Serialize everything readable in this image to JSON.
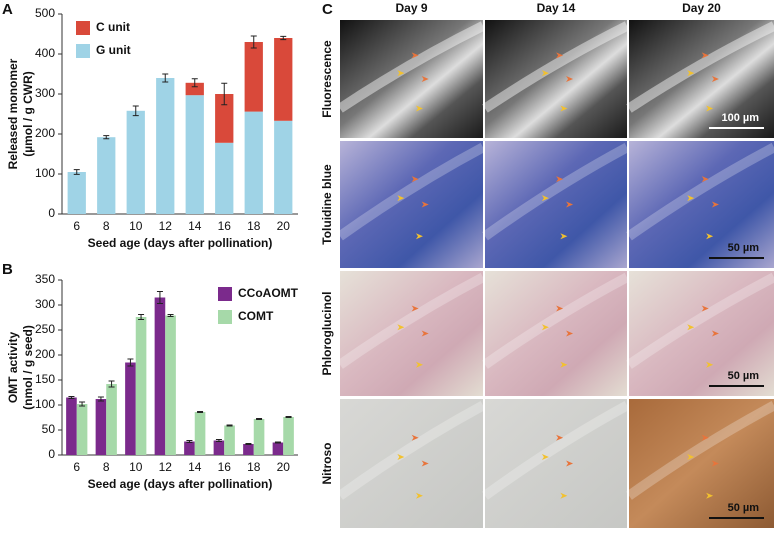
{
  "chart_data": [
    {
      "type": "bar",
      "label": "A",
      "barmode": "stack",
      "categories": [
        "6",
        "8",
        "10",
        "12",
        "14",
        "16",
        "18",
        "20"
      ],
      "series": [
        {
          "name": "G unit",
          "color": "#9fd3e6",
          "values": [
            105,
            192,
            258,
            340,
            297,
            178,
            256,
            233
          ],
          "errors": [
            6,
            4,
            12,
            10,
            null,
            null,
            null,
            null
          ]
        },
        {
          "name": "C unit",
          "color": "#d9493a",
          "values": [
            null,
            null,
            null,
            null,
            31,
            122,
            174,
            207
          ],
          "errors": [
            null,
            null,
            null,
            null,
            10,
            27,
            15,
            4
          ]
        }
      ],
      "legend_order": [
        1,
        0
      ],
      "legend": "upper left",
      "ylabel": [
        "Released monomer",
        "(µmol / g CWR)"
      ],
      "xlabel": "Seed age (days after pollination)",
      "ylim": [
        0,
        500
      ],
      "yticks": [
        0,
        100,
        200,
        300,
        400,
        500
      ]
    },
    {
      "type": "bar",
      "label": "B",
      "barmode": "group",
      "categories": [
        "6",
        "8",
        "10",
        "12",
        "14",
        "16",
        "18",
        "20"
      ],
      "series": [
        {
          "name": "CCoAOMT",
          "color": "#7b2a8c",
          "values": [
            115,
            112,
            185,
            315,
            27,
            29,
            22,
            25
          ],
          "errors": [
            2,
            4,
            7,
            12,
            2,
            2,
            1,
            1
          ]
        },
        {
          "name": "COMT",
          "color": "#a6d9a9",
          "values": [
            102,
            142,
            276,
            279,
            86,
            59,
            72,
            76
          ],
          "errors": [
            4,
            6,
            5,
            2,
            1,
            1,
            1,
            1
          ]
        }
      ],
      "legend_order": [
        0,
        1
      ],
      "legend": "upper right",
      "ylabel": [
        "OMT activity",
        "(nmol / g seed)"
      ],
      "xlabel": "Seed age (days after pollination)",
      "ylim": [
        0,
        350
      ],
      "yticks": [
        0,
        50,
        100,
        150,
        200,
        250,
        300,
        350
      ]
    }
  ],
  "micrographs": {
    "panel_label": "C",
    "columns": [
      "Day 9",
      "Day 14",
      "Day 20"
    ],
    "rows": [
      {
        "label": "Fluorescence",
        "scale_bar": "100 µm"
      },
      {
        "label": "Toluidine blue",
        "scale_bar": "50 µm"
      },
      {
        "label": "Phloroglucinol",
        "scale_bar": "50 µm"
      },
      {
        "label": "Nitroso",
        "scale_bar": "50 µm"
      }
    ]
  }
}
